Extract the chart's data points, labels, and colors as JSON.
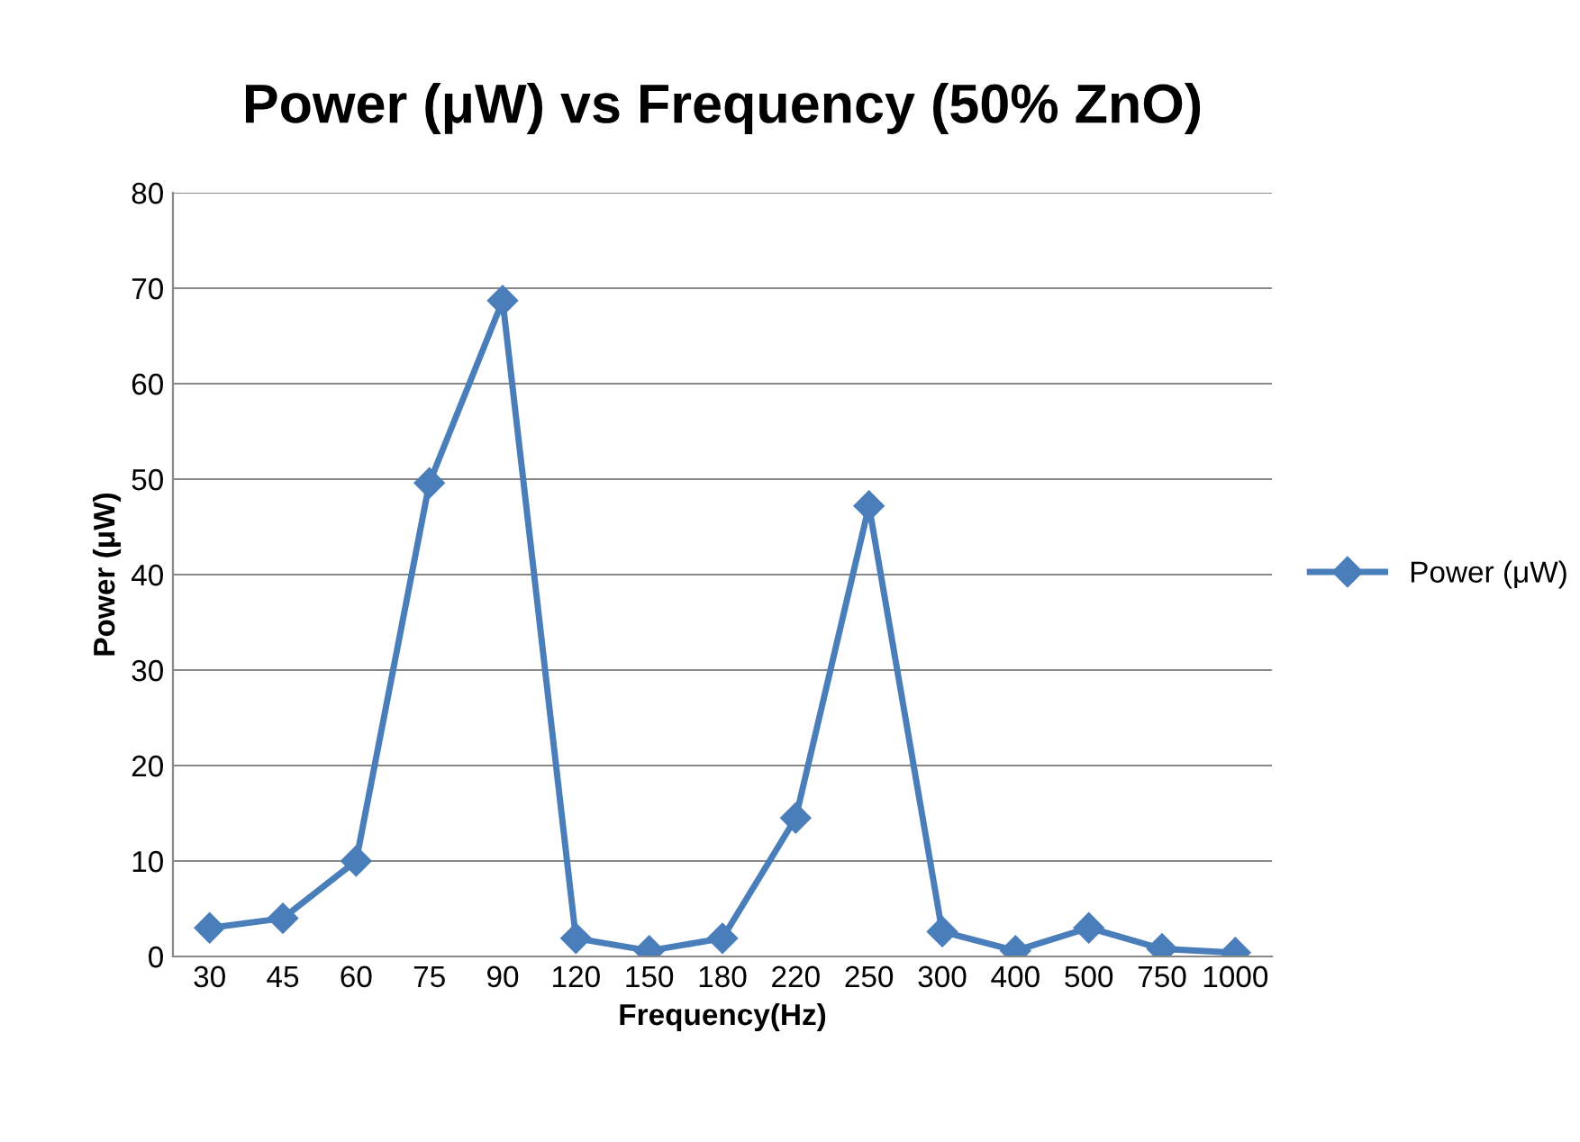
{
  "chart_data": {
    "type": "line",
    "title": "Power (μW) vs Frequency (50% ZnO)",
    "xlabel": "Frequency(Hz)",
    "ylabel": "Power (μW)",
    "categories": [
      "30",
      "45",
      "60",
      "75",
      "90",
      "120",
      "150",
      "180",
      "220",
      "250",
      "300",
      "400",
      "500",
      "750",
      "1000"
    ],
    "series": [
      {
        "name": "Power (μW)",
        "color": "#4a7ebb",
        "values": [
          3.0,
          4.0,
          10.0,
          49.6,
          68.7,
          1.9,
          0.6,
          1.9,
          14.5,
          47.2,
          2.6,
          0.6,
          3.0,
          0.8,
          0.4
        ]
      }
    ],
    "ylim": [
      0,
      80
    ],
    "yticks": [
      0,
      10,
      20,
      30,
      40,
      50,
      60,
      70,
      80
    ],
    "grid": "y",
    "legend": "right",
    "marker": "diamond",
    "line_style": "solid"
  }
}
